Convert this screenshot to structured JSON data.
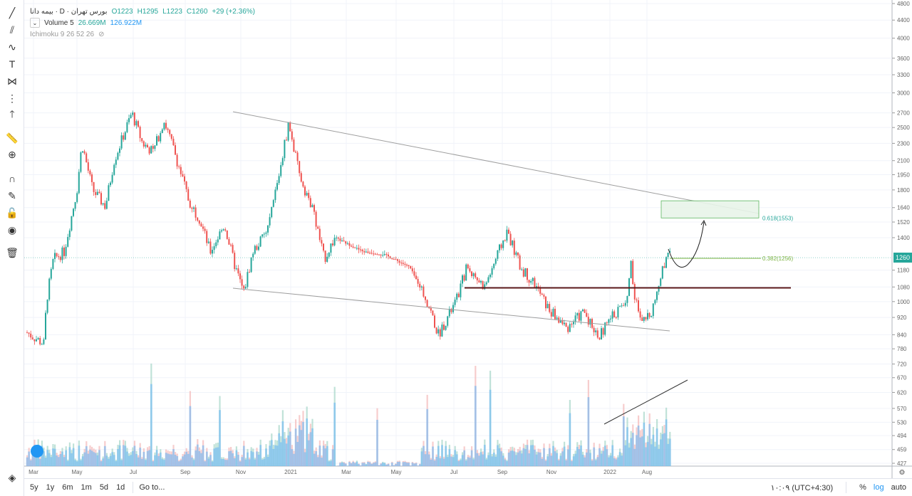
{
  "legend": {
    "symbol": "بیمه دانا · D · بورس تهران",
    "ohlc": {
      "open": "O1223",
      "high": "H1295",
      "low": "L1223",
      "close": "C1260",
      "change": "+29 (+2.36%)"
    },
    "volume_label": "Volume 5",
    "volume_value": "26.669M",
    "volume_ma": "126.922M",
    "ichimoku": "Ichimoku 9 26 52 26"
  },
  "bottom": {
    "ranges": [
      "5y",
      "1y",
      "6m",
      "1m",
      "5d",
      "1d"
    ],
    "goto": "Go to...",
    "time": "۱۰:۰۹ (UTC+4:30)",
    "percent": "%",
    "log": "log",
    "auto": "auto"
  },
  "colors": {
    "up": "#26a69a",
    "down": "#ef5350",
    "volume": "#64b5f6",
    "fib": "#7cb342",
    "fib_box": "#e8f5e9",
    "support": "#5d1a1a",
    "trend": "#9e9e9e"
  },
  "chart_data": {
    "type": "candlestick",
    "scale": "log",
    "ylim": [
      427,
      4800
    ],
    "yticks": [
      4800,
      4400,
      4000,
      3600,
      3300,
      3000,
      2700,
      2500,
      2300,
      2100,
      1950,
      1800,
      1640,
      1520,
      1400,
      1180,
      1080,
      1000,
      920,
      840,
      780,
      720,
      670,
      620,
      570,
      530,
      494,
      459,
      427
    ],
    "xticks": [
      "Mar",
      "May",
      "Jul",
      "Sep",
      "Nov",
      "2021",
      "Mar",
      "May",
      "Jul",
      "Sep",
      "Nov",
      "2022",
      "Aug"
    ],
    "last_price": "1260",
    "close_path": [
      850,
      800,
      1000,
      1250,
      1300,
      1800,
      2300,
      1800,
      1650,
      2100,
      2700,
      2300,
      2200,
      2600,
      2200,
      1700,
      1550,
      1300,
      1500,
      1200,
      1050,
      1300,
      1450,
      1900,
      2550,
      1950,
      1600,
      1250,
      1400,
      1300,
      1280,
      1200,
      1000,
      840,
      1000,
      1200,
      1080,
      1300,
      1450,
      1200,
      1100,
      960,
      870,
      950,
      830,
      930,
      1000,
      1250,
      1050,
      880,
      960,
      1100,
      1330,
      1260
    ],
    "annotations": {
      "fib_618": "0.618(1553)",
      "fib_382": "0.382(1256)",
      "fib_618_price": 1553,
      "fib_box_top": 1700,
      "fib_382_price": 1256,
      "support_price": 1075
    }
  }
}
